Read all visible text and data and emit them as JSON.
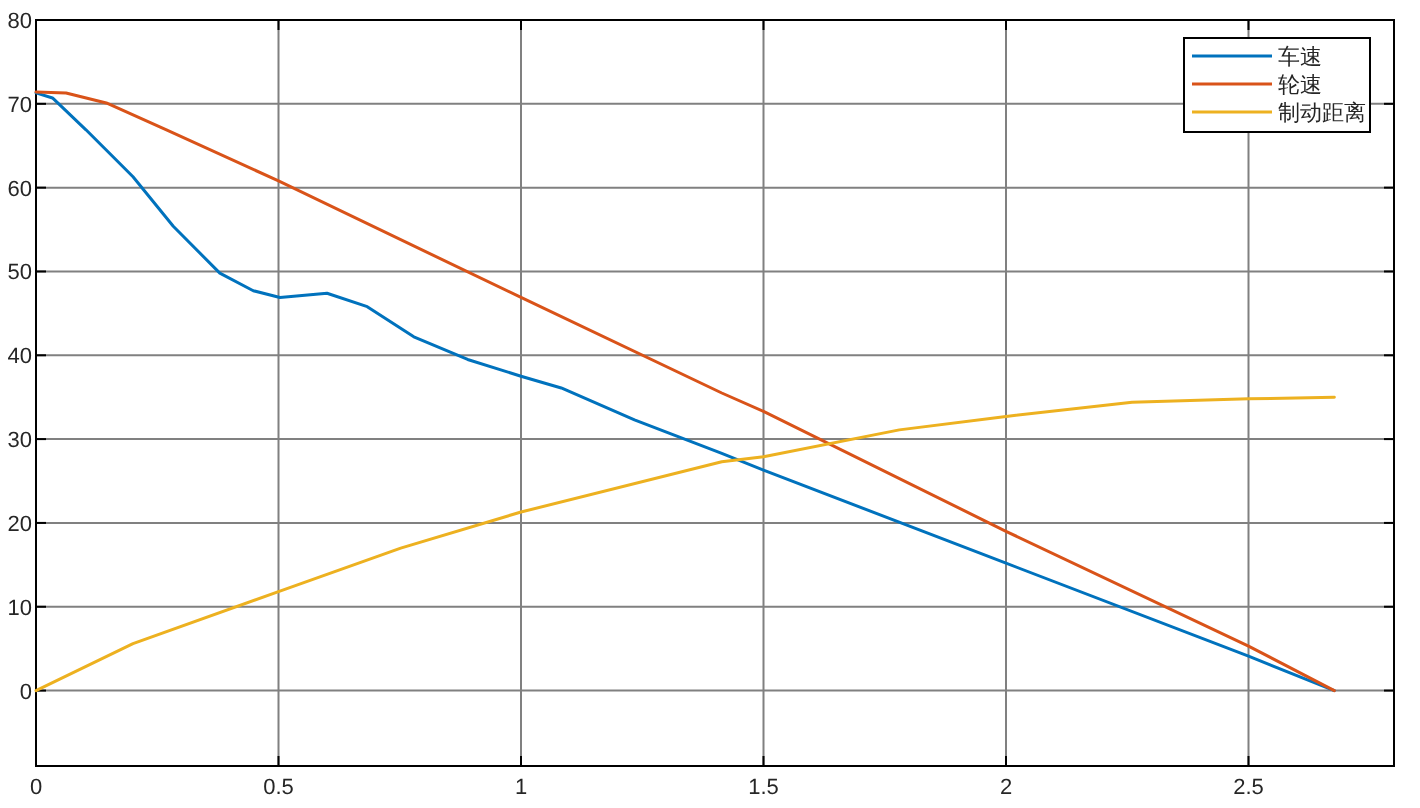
{
  "chart_data": {
    "type": "line",
    "xlim": [
      0,
      2.8
    ],
    "ylim": [
      -9,
      80
    ],
    "xticks": [
      0,
      0.5,
      1,
      1.5,
      2,
      2.5
    ],
    "yticks": [
      0,
      10,
      20,
      30,
      40,
      50,
      60,
      70,
      80
    ],
    "grid": true,
    "legend": "top right",
    "series": [
      {
        "name": "车速",
        "color": "#0072bd",
        "x": [
          0,
          0.034,
          0.103,
          0.2,
          0.283,
          0.379,
          0.448,
          0.503,
          0.6,
          0.683,
          0.779,
          0.89,
          1.0,
          1.083,
          1.234,
          1.414,
          1.5,
          2,
          2.5,
          2.677
        ],
        "values": [
          71.3,
          70.7,
          66.9,
          61.3,
          55.4,
          49.8,
          47.7,
          46.9,
          47.4,
          45.8,
          42.2,
          39.5,
          37.5,
          36.1,
          32.3,
          28.3,
          26.3,
          15.2,
          4.1,
          0
        ]
      },
      {
        "name": "轮速",
        "color": "#d95319",
        "x": [
          0,
          0.062,
          0.145,
          0.269,
          0.5,
          1,
          1.414,
          1.5,
          2,
          2.5,
          2.677
        ],
        "values": [
          71.4,
          71.3,
          70.1,
          66.9,
          60.8,
          46.9,
          35.5,
          33.3,
          19.0,
          5.3,
          0
        ]
      },
      {
        "name": "制动距离",
        "color": "#edb120",
        "x": [
          0,
          0.2,
          0.5,
          0.752,
          1,
          1.414,
          1.5,
          1.78,
          2,
          2.26,
          2.5,
          2.677
        ],
        "values": [
          0,
          5.6,
          11.8,
          17.0,
          21.3,
          27.3,
          27.9,
          31.1,
          32.7,
          34.4,
          34.8,
          35.0
        ]
      }
    ]
  }
}
